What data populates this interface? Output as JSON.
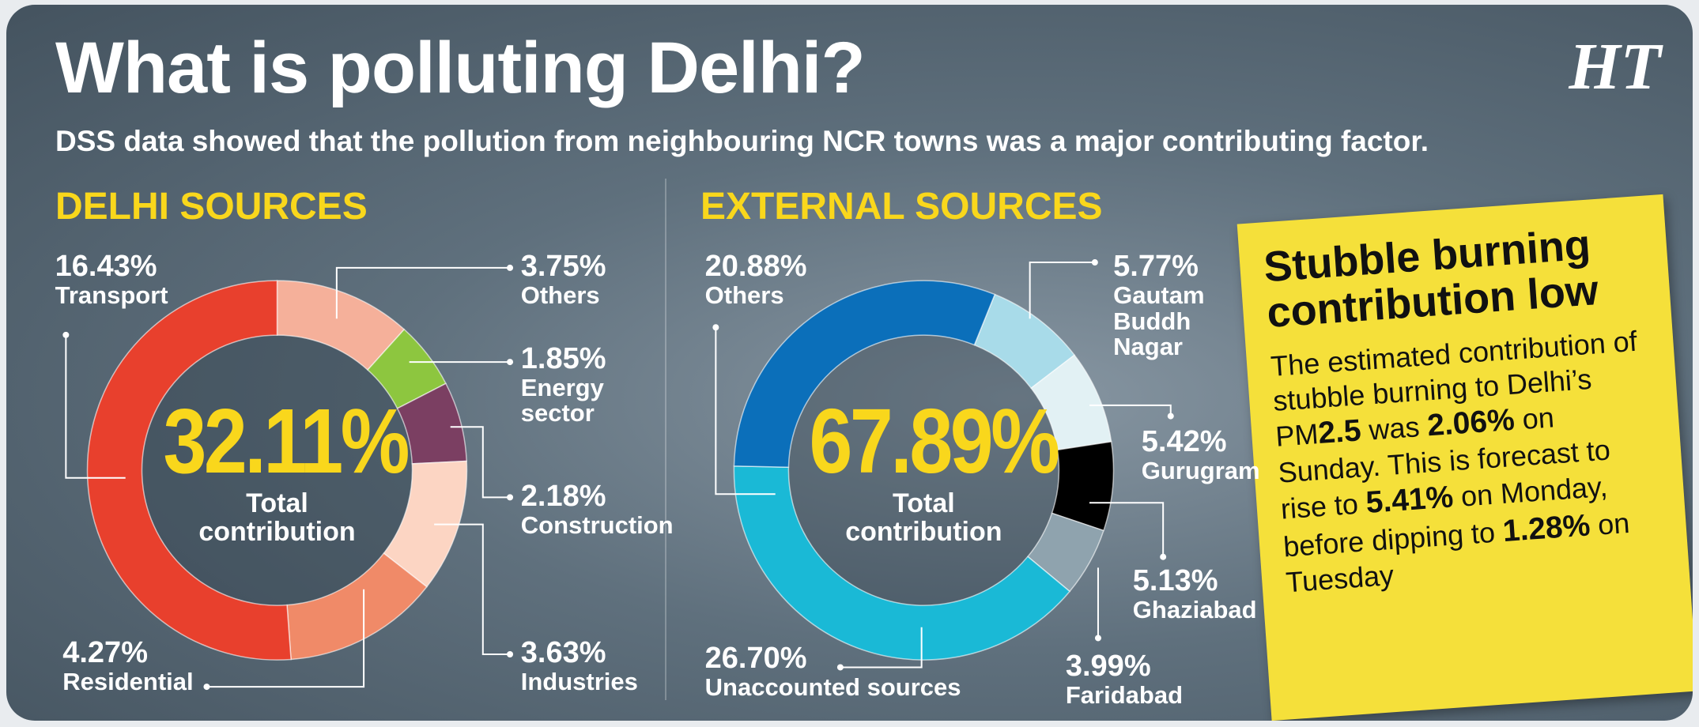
{
  "title": "What is polluting Delhi?",
  "subtitle": "DSS data showed that the pollution from neighbouring NCR towns was a major contributing factor.",
  "logo": "HT",
  "chart_data": [
    {
      "type": "pie",
      "title": "DELHI SOURCES",
      "categories": [
        "Others",
        "Energy sector",
        "Construction",
        "Industries",
        "Residential",
        "Transport"
      ],
      "values": [
        3.75,
        1.85,
        2.18,
        3.63,
        4.27,
        16.43
      ],
      "value_labels": [
        "3.75%",
        "1.85%",
        "2.18%",
        "3.63%",
        "4.27%",
        "16.43%"
      ],
      "colors": [
        "#f5b09a",
        "#8dc63f",
        "#7b3f62",
        "#fcd5c3",
        "#f08a68",
        "#e8402d"
      ],
      "total": {
        "value": 32.11,
        "label": "32.11%"
      },
      "total_caption": "Total contribution"
    },
    {
      "type": "pie",
      "title": "EXTERNAL SOURCES",
      "categories": [
        "Gautam Buddh Nagar",
        "Gurugram",
        "Ghaziabad",
        "Faridabad",
        "Unaccounted sources",
        "Others"
      ],
      "values": [
        5.77,
        5.42,
        5.13,
        3.99,
        26.7,
        20.88
      ],
      "value_labels": [
        "5.77%",
        "5.42%",
        "5.13%",
        "3.99%",
        "26.70%",
        "20.88%"
      ],
      "colors": [
        "#a8dbe9",
        "#e2f1f4",
        "#000000",
        "#8fa3ae",
        "#1ab9d6",
        "#0b6fba"
      ],
      "total": {
        "value": 67.89,
        "label": "67.89%"
      },
      "total_caption": "Total contribution"
    }
  ],
  "note": {
    "title": "Stubble burning contribution low",
    "body": [
      "The estimated contribution of stubble burning to Delhi’s PM",
      "2.5",
      " was ",
      "2.06%",
      " on Sunday. This is forecast to rise to ",
      "5.41%",
      " on Monday, before dipping to ",
      "1.28%",
      " on Tuesday"
    ]
  }
}
